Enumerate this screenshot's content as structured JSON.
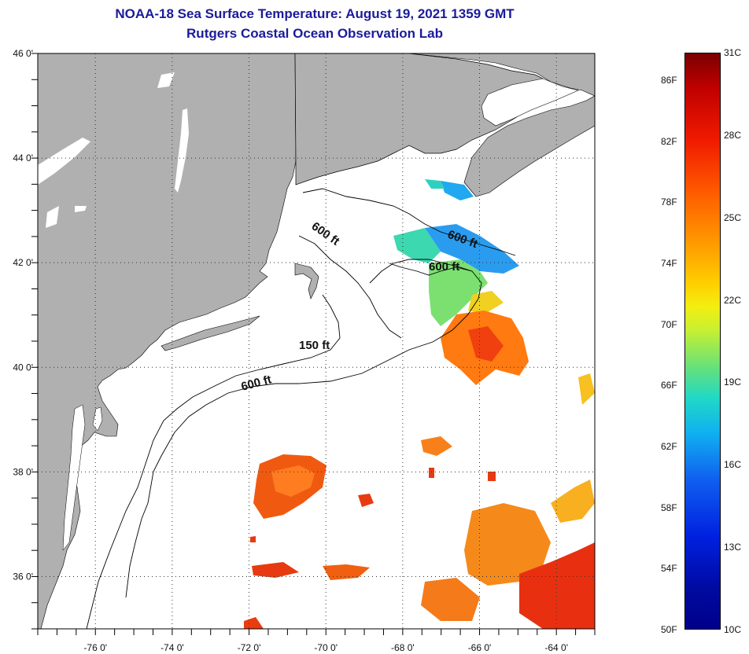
{
  "title": {
    "line1": "NOAA-18 Sea Surface Temperature:  August 19, 2021 1359 GMT",
    "line2": "Rutgers Coastal Ocean Observation Lab"
  },
  "map": {
    "lat_range": [
      35,
      46
    ],
    "lon_range": [
      -77.5,
      -63
    ],
    "lat_ticks": [
      {
        "value": 46,
        "label": "46 0'"
      },
      {
        "value": 44,
        "label": "44 0'"
      },
      {
        "value": 42,
        "label": "42 0'"
      },
      {
        "value": 40,
        "label": "40 0'"
      },
      {
        "value": 38,
        "label": "38 0'"
      },
      {
        "value": 36,
        "label": "36 0'"
      }
    ],
    "lon_ticks": [
      {
        "value": -76,
        "label": "-76 0'"
      },
      {
        "value": -74,
        "label": "-74 0'"
      },
      {
        "value": -72,
        "label": "-72 0'"
      },
      {
        "value": -70,
        "label": "-70 0'"
      },
      {
        "value": -68,
        "label": "-68 0'"
      },
      {
        "value": -66,
        "label": "-66 0'"
      },
      {
        "value": -64,
        "label": "-64 0'"
      }
    ],
    "contour_labels": [
      "600 ft",
      "600 ft",
      "600 ft",
      "150 ft",
      "600 ft"
    ],
    "land_color": "#b0b0b0",
    "ocean_color": "#ffffff"
  },
  "colorbar": {
    "fahrenheit": [
      {
        "value": 86,
        "label": "86F"
      },
      {
        "value": 82,
        "label": "82F"
      },
      {
        "value": 78,
        "label": "78F"
      },
      {
        "value": 74,
        "label": "74F"
      },
      {
        "value": 70,
        "label": "70F"
      },
      {
        "value": 66,
        "label": "66F"
      },
      {
        "value": 62,
        "label": "62F"
      },
      {
        "value": 58,
        "label": "58F"
      },
      {
        "value": 54,
        "label": "54F"
      },
      {
        "value": 50,
        "label": "50F"
      }
    ],
    "celsius": [
      {
        "value": 31,
        "label": "31C"
      },
      {
        "value": 28,
        "label": "28C"
      },
      {
        "value": 25,
        "label": "25C"
      },
      {
        "value": 22,
        "label": "22C"
      },
      {
        "value": 19,
        "label": "19C"
      },
      {
        "value": 16,
        "label": "16C"
      },
      {
        "value": 13,
        "label": "13C"
      },
      {
        "value": 10,
        "label": "10C"
      }
    ],
    "range_c": [
      10,
      31
    ]
  }
}
